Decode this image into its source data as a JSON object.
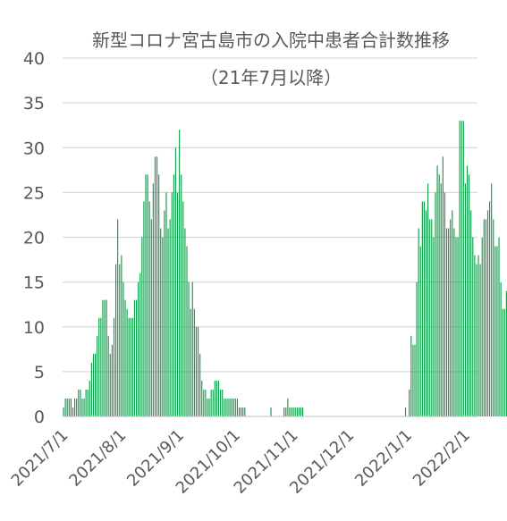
{
  "chart_data": {
    "type": "bar",
    "title": "新型コロナ宮古島市の入院中患者合計数推移",
    "subtitle": "（21年7月以降）",
    "xlabel": "",
    "ylabel": "",
    "ylim": [
      0,
      40
    ],
    "yticks": [
      0,
      5,
      10,
      15,
      20,
      25,
      30,
      35,
      40
    ],
    "grid": true,
    "legend": "none",
    "bar_color": "#0e9f4a",
    "x_tick_labels": [
      "2021/7/1",
      "2021/8/1",
      "2021/9/1",
      "2021/10/1",
      "2021/11/1",
      "2021/12/1",
      "2022/1/1",
      "2022/2/1"
    ],
    "x_start": "2021/7/1",
    "series": [
      {
        "segments": [
          {
            "start": "2021/7/1",
            "values": [
              1,
              2,
              2,
              2,
              2,
              1,
              2,
              2,
              3,
              3,
              2,
              2,
              3,
              3,
              4,
              6,
              7,
              7,
              9,
              11,
              11,
              13,
              13,
              13,
              9,
              7,
              8,
              11,
              17,
              22,
              17,
              18,
              15,
              13,
              12,
              11,
              11,
              11,
              13,
              13,
              15,
              16,
              20,
              24,
              27,
              27,
              24,
              22,
              26,
              29,
              29,
              27,
              21,
              20,
              23,
              25,
              21,
              22,
              25,
              27,
              30,
              25,
              32,
              27,
              24,
              21,
              19,
              15,
              12,
              15,
              12,
              10,
              10,
              7,
              4,
              3,
              3,
              2,
              2,
              3,
              3,
              4,
              4,
              4,
              3,
              3,
              2,
              2,
              2,
              2,
              2,
              2,
              2,
              2,
              1,
              1,
              1,
              1
            ]
          },
          {
            "start": "2021/10/20",
            "values": [
              1
            ]
          },
          {
            "start": "2021/10/27",
            "values": [
              1,
              1,
              2,
              1,
              1,
              1,
              1,
              1,
              1,
              1,
              1
            ]
          },
          {
            "start": "2021/12/31",
            "values": [
              1
            ]
          },
          {
            "start": "2022/1/2",
            "values": [
              3,
              9,
              8,
              8,
              15,
              21,
              19,
              24,
              24,
              23,
              26,
              22,
              22,
              20,
              25,
              28,
              27,
              26,
              29,
              25,
              21,
              21,
              22,
              23,
              21,
              20,
              20,
              33,
              33,
              33,
              26,
              28,
              27,
              23,
              20,
              18,
              17,
              18,
              17,
              20,
              22,
              22,
              23,
              24,
              26,
              22,
              19,
              19,
              20,
              15,
              12,
              12,
              14
            ]
          }
        ]
      }
    ]
  }
}
